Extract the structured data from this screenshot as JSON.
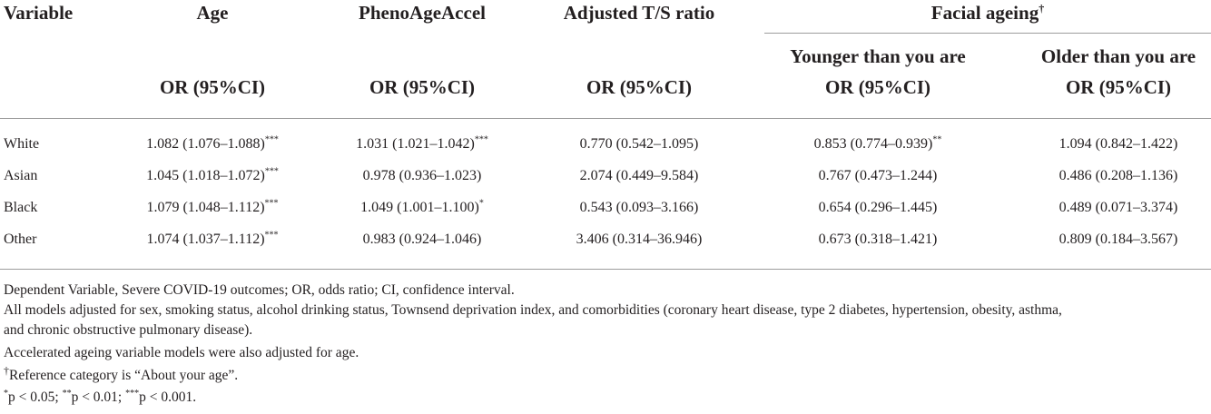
{
  "table": {
    "headers": {
      "variable": "Variable",
      "age": "Age",
      "phenoageaccel": "PhenoAgeAccel",
      "ts_ratio": "Adjusted T/S ratio",
      "facial_ageing": "Facial ageing",
      "facial_ageing_mark": "†",
      "younger": "Younger than you are",
      "older": "Older than you are",
      "or_ci": "OR (95%CI)"
    },
    "rows": [
      {
        "label": "White",
        "age": "1.082 (1.076–1.088)",
        "age_sig": "***",
        "pheno": "1.031 (1.021–1.042)",
        "pheno_sig": "***",
        "ts": "0.770 (0.542–1.095)",
        "younger": "0.853 (0.774–0.939)",
        "younger_sig": "**",
        "older": "1.094 (0.842–1.422)"
      },
      {
        "label": "Asian",
        "age": "1.045 (1.018–1.072)",
        "age_sig": "***",
        "pheno": "0.978 (0.936–1.023)",
        "pheno_sig": "",
        "ts": "2.074 (0.449–9.584)",
        "younger": "0.767 (0.473–1.244)",
        "younger_sig": "",
        "older": "0.486 (0.208–1.136)"
      },
      {
        "label": "Black",
        "age": "1.079 (1.048–1.112)",
        "age_sig": "***",
        "pheno": "1.049 (1.001–1.100)",
        "pheno_sig": "*",
        "ts": "0.543 (0.093–3.166)",
        "younger": "0.654 (0.296–1.445)",
        "younger_sig": "",
        "older": "0.489 (0.071–3.374)"
      },
      {
        "label": "Other",
        "age": "1.074 (1.037–1.112)",
        "age_sig": "***",
        "pheno": "0.983 (0.924–1.046)",
        "pheno_sig": "",
        "ts": "3.406 (0.314–36.946)",
        "younger": "0.673 (0.318–1.421)",
        "younger_sig": "",
        "older": "0.809 (0.184–3.567)"
      }
    ]
  },
  "notes": {
    "line1": "Dependent Variable, Severe COVID-19 outcomes; OR, odds ratio; CI, confidence interval.",
    "line2": "All models adjusted for sex, smoking status, alcohol drinking status, Townsend deprivation index, and comorbidities (coronary heart disease, type 2 diabetes, hypertension, obesity, asthma,",
    "line3": "and chronic obstructive pulmonary disease).",
    "line4": "Accelerated ageing variable models were also adjusted for age.",
    "line5_mark": "†",
    "line5": "Reference category is “About your age”.",
    "sig_mark1": "*",
    "sig_text1": "p < 0.05; ",
    "sig_mark2": "**",
    "sig_text2": "p < 0.01; ",
    "sig_mark3": "***",
    "sig_text3": "p < 0.001."
  }
}
